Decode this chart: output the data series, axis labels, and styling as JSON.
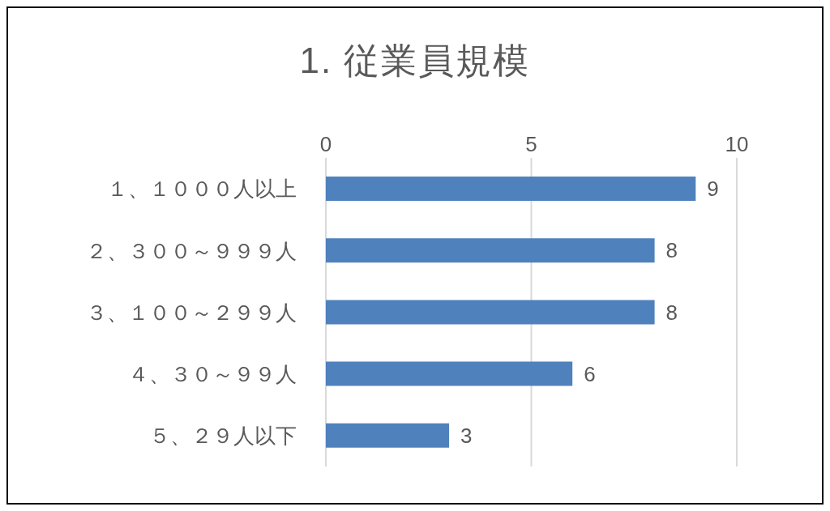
{
  "chart_data": {
    "type": "bar",
    "orientation": "horizontal",
    "title": "1. 従業員規模",
    "categories": [
      "１、１０００人以上",
      "２、３００～９９９人",
      "３、１００～２９９人",
      "４、３０～９９人",
      "５、２９人以下"
    ],
    "values": [
      9,
      8,
      8,
      6,
      3
    ],
    "color": "#4f81bd",
    "xlim": [
      0,
      10
    ],
    "xticks": [
      0,
      5,
      10
    ],
    "grid": "x",
    "data_labels": true
  }
}
